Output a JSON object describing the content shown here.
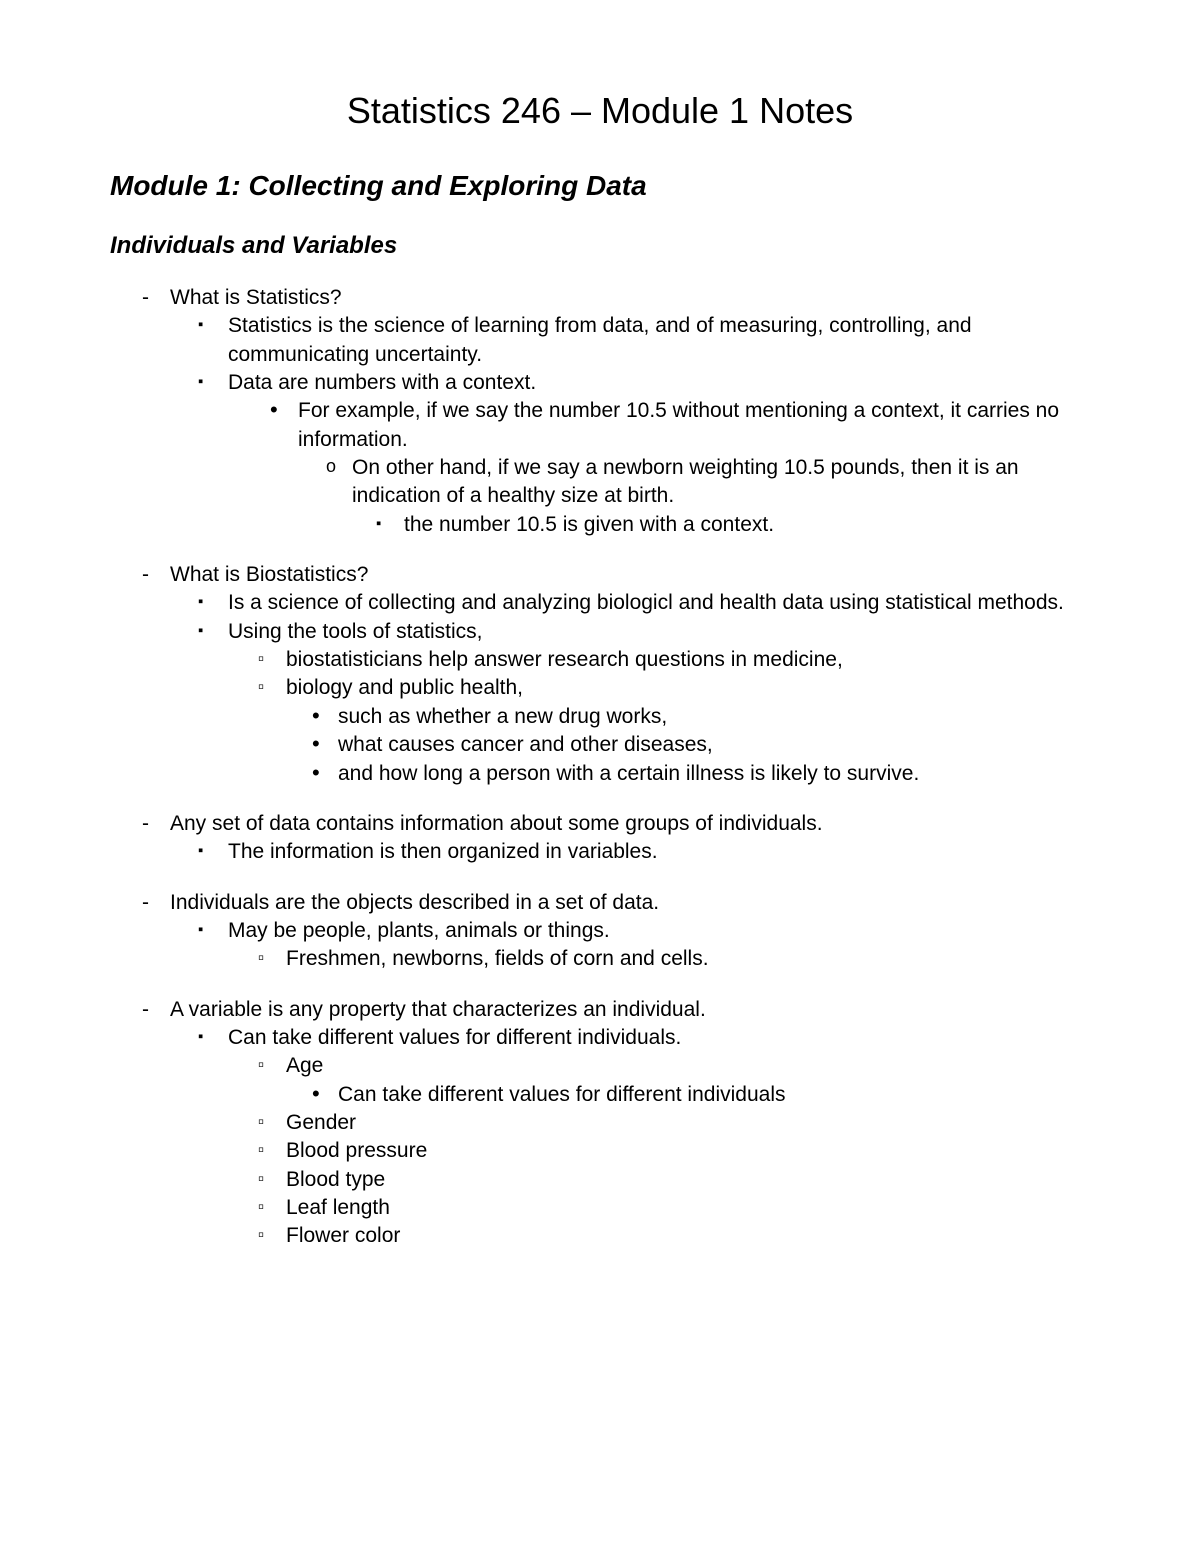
{
  "title": "Statistics 246 – Module 1 Notes",
  "subtitle": "Module 1: Collecting and Exploring Data",
  "section_heading": "Individuals and Variables",
  "s1": {
    "q": "What is Statistics?",
    "a1": "Statistics is the science of learning from data, and of measuring, controlling, and communicating uncertainty.",
    "a2": "Data are numbers with a context.",
    "a2_1": "For example, if we say the number 10.5 without mentioning a context, it carries no information.",
    "a2_1_1": "On other hand, if we say a newborn weighting 10.5 pounds, then it is an indication of a healthy size at birth.",
    "a2_1_1_1": "the number 10.5 is given with a context."
  },
  "s2": {
    "q": "What is Biostatistics?",
    "a1": "Is a science of collecting and analyzing biologicl and health data using statistical methods.",
    "a2": "Using the tools of statistics,",
    "a2_1": "biostatisticians help answer research questions in medicine,",
    "a2_2": "biology and public health,",
    "a2_2_1": "such as whether a new drug works,",
    "a2_2_2": "what causes cancer and other diseases,",
    "a2_2_3": "and how long a person with a certain illness is likely to survive."
  },
  "s3": {
    "t": "Any set of data contains information about some groups of individuals.",
    "a1": "The information is then organized in variables."
  },
  "s4": {
    "t": "Individuals are the objects described in a set of data.",
    "a1": "May be people, plants, animals or things.",
    "a1_1": "Freshmen, newborns, fields of corn and cells."
  },
  "s5": {
    "t": "A variable is any property that characterizes an individual.",
    "a1": "Can take different values for different individuals.",
    "a1_1": "Age",
    "a1_1_1": "Can take different values for different individuals",
    "a1_2": "Gender",
    "a1_3": "Blood pressure",
    "a1_4": "Blood type",
    "a1_5": "Leaf length",
    "a1_6": "Flower color"
  }
}
